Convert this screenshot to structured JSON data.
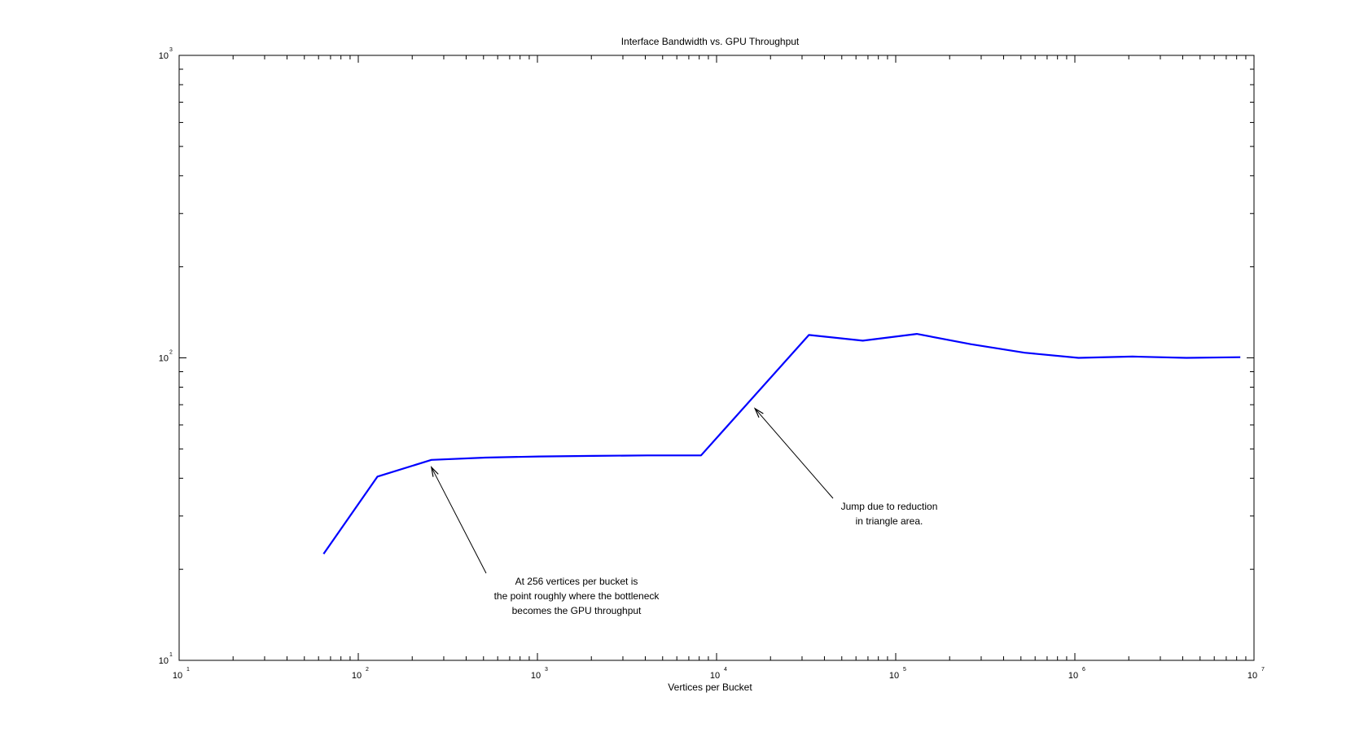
{
  "chart_data": {
    "type": "line",
    "title": "Interface Bandwidth vs. GPU Throughput",
    "xlabel": "Vertices per Bucket",
    "ylabel": "",
    "xscale": "log",
    "yscale": "log",
    "xlim": [
      10,
      10000000
    ],
    "ylim": [
      10,
      1000
    ],
    "grid": false,
    "x_tick_labels": [
      {
        "value": 10,
        "base": "10",
        "exp": "1"
      },
      {
        "value": 100,
        "base": "10",
        "exp": "2"
      },
      {
        "value": 1000,
        "base": "10",
        "exp": "3"
      },
      {
        "value": 10000,
        "base": "10",
        "exp": "4"
      },
      {
        "value": 100000,
        "base": "10",
        "exp": "5"
      },
      {
        "value": 1000000,
        "base": "10",
        "exp": "6"
      },
      {
        "value": 10000000,
        "base": "10",
        "exp": "7"
      }
    ],
    "y_tick_labels": [
      {
        "value": 10,
        "base": "10",
        "exp": "1"
      },
      {
        "value": 100,
        "base": "10",
        "exp": "2"
      },
      {
        "value": 1000,
        "base": "10",
        "exp": "3"
      }
    ],
    "series": [
      {
        "color": "#0000ff",
        "x": [
          64,
          128,
          256,
          512,
          1024,
          2048,
          4096,
          8192,
          32768,
          65536,
          131072,
          262144,
          524288,
          1048576,
          2097152,
          4194304,
          8388608
        ],
        "y": [
          22.5,
          40.5,
          46,
          46.8,
          47.2,
          47.4,
          47.6,
          47.6,
          119,
          114,
          120,
          111,
          104,
          100,
          101,
          100,
          100.5
        ]
      }
    ],
    "annotations": [
      {
        "lines": [
          "At 256 vertices per bucket is",
          "the point roughly where the bottleneck",
          "becomes the GPU throughput"
        ],
        "arrow_to": {
          "x": 256,
          "y": 43.5
        }
      },
      {
        "lines": [
          "Jump due to reduction",
          "in triangle area."
        ],
        "arrow_to": {
          "x": 16384,
          "y": 68
        }
      }
    ]
  }
}
